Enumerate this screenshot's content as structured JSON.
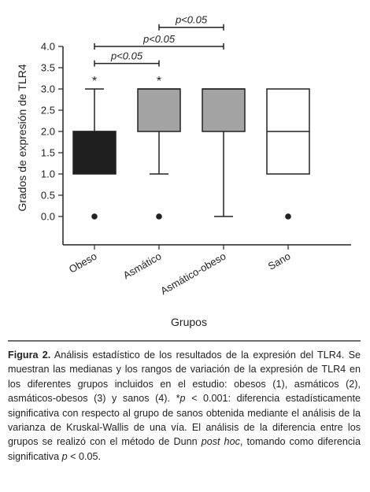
{
  "chart_data": {
    "type": "box",
    "ylabel": "Grados de expresión de TLR4",
    "xlabel": "Grupos",
    "ylim": [
      -0.5,
      4.0
    ],
    "yticks": [
      "0.0",
      "0.5",
      "1.0",
      "1.5",
      "2.0",
      "2.5",
      "3.0",
      "3.5",
      "4.0"
    ],
    "ytick_values": [
      0,
      0.5,
      1,
      1.5,
      2,
      2.5,
      3,
      3.5,
      4
    ],
    "categories": [
      "Obeso",
      "Asmático",
      "Asmático-obeso",
      "Sano"
    ],
    "boxes": [
      {
        "category": "Obeso",
        "whisker_low": null,
        "q1": 1.0,
        "median": 2.0,
        "q3": 2.0,
        "whisker_high": 3.0,
        "outliers": [
          0.0
        ],
        "color": "#1f1f1f",
        "significance": "*"
      },
      {
        "category": "Asmático",
        "whisker_low": 1.0,
        "q1": 2.0,
        "median": 3.0,
        "q3": 3.0,
        "whisker_high": null,
        "outliers": [
          0.0
        ],
        "color": "#a3a3a3",
        "significance": "*"
      },
      {
        "category": "Asmático-obeso",
        "whisker_low": 0.0,
        "q1": 2.0,
        "median": 3.0,
        "q3": 3.0,
        "whisker_high": null,
        "outliers": [],
        "color": "#a3a3a3",
        "significance": ""
      },
      {
        "category": "Sano",
        "whisker_low": null,
        "q1": 1.0,
        "median": 2.0,
        "q3": 3.0,
        "whisker_high": null,
        "outliers": [
          0.0
        ],
        "color": "#ffffff",
        "significance": ""
      }
    ],
    "comparisons": [
      {
        "from": "Obeso",
        "to": "Asmático",
        "label": "p<0.05"
      },
      {
        "from": "Obeso",
        "to": "Asmático-obeso",
        "label": "p<0.05"
      },
      {
        "from": "Asmático",
        "to": "Asmático-obeso",
        "label": "p<0.05"
      }
    ]
  },
  "caption": {
    "figure_label": "Figura 2.",
    "segments": [
      {
        "text": " Análisis estadístico de los resultados de la expresión del TLR4. Se muestran las medianas y los rangos de variación de la expresión de TLR4 en los diferentes grupos incluidos en el estudio: obesos (1), asmáticos (2), asmáticos-obesos (3) y sanos (4). *",
        "italic": false
      },
      {
        "text": "p",
        "italic": true
      },
      {
        "text": " < 0.001: diferencia estadísticamente significativa con respecto al grupo de sanos obtenida mediante el análisis de la varianza de Kruskal-Wallis de una vía. El análisis de la diferencia entre los grupos se realizó con el método de Dunn ",
        "italic": false
      },
      {
        "text": "post hoc",
        "italic": true
      },
      {
        "text": ", tomando como diferencia significativa ",
        "italic": false
      },
      {
        "text": "p",
        "italic": true
      },
      {
        "text": " < 0.05.",
        "italic": false
      }
    ]
  }
}
